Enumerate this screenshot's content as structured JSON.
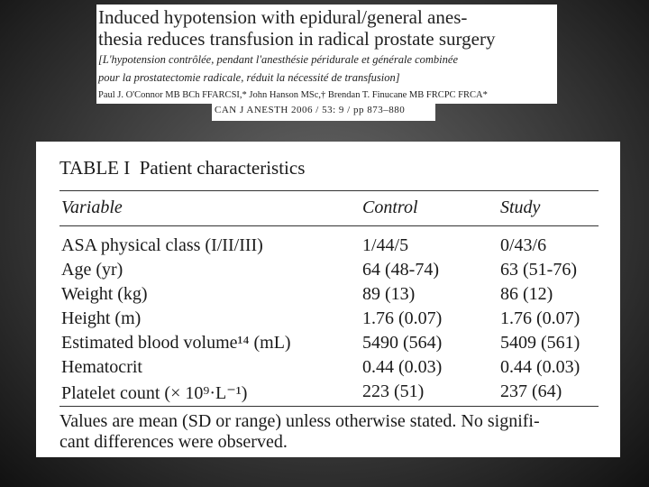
{
  "article": {
    "title_lines": [
      "Induced hypotension with epidural/general anes-",
      "thesia reduces transfusion in radical prostate surgery"
    ],
    "subtitle_lines": [
      "[L'hypotension contrôlée, pendant l'anesthésie péridurale et générale combinée",
      "pour la prostatectomie radicale, réduit la nécessité de transfusion]"
    ],
    "authors": "Paul J. O'Connor MB BCh FFARCSI,* John Hanson MSc,† Brendan T. Finucane MB FRCPC FRCA*",
    "citation": "CAN J ANESTH 2006 / 53: 9 / pp 873–880"
  },
  "table": {
    "label": "TABLE I",
    "title": "Patient characteristics",
    "header": [
      "Variable",
      "Control",
      "Study"
    ],
    "rows": [
      [
        "ASA physical class (I/II/III)",
        "1/44/5",
        "0/43/6"
      ],
      [
        "Age (yr)",
        "64 (48-74)",
        "63 (51-76)"
      ],
      [
        "Weight (kg)",
        "89 (13)",
        "86 (12)"
      ],
      [
        "Height (m)",
        "1.76 (0.07)",
        "1.76 (0.07)"
      ],
      [
        "Estimated blood volume¹⁴ (mL)",
        "5490 (564)",
        "5409 (561)"
      ],
      [
        "Hematocrit",
        "0.44 (0.03)",
        "0.44 (0.03)"
      ],
      [
        "Platelet count (× 10⁹·L⁻¹)",
        "223 (51)",
        "237 (64)"
      ]
    ],
    "footnote_lines": [
      "Values are mean (SD or range) unless otherwise stated. No signifi-",
      "cant differences were observed."
    ]
  }
}
